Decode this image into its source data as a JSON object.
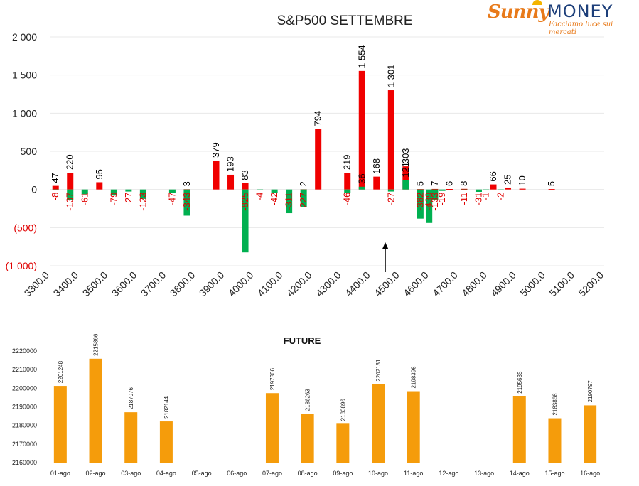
{
  "logo": {
    "word1": "Sunny",
    "word2": "MONEY",
    "tagline": "Facciamo luce sui mercati"
  },
  "chart_data": [
    {
      "type": "bar",
      "title": "S&P500 SETTEMBRE",
      "x_ticks": [
        "3300.0",
        "3400.0",
        "3500.0",
        "3600.0",
        "3700.0",
        "3800.0",
        "3900.0",
        "4000.0",
        "4100.0",
        "4200.0",
        "4300.0",
        "4400.0",
        "4500.0",
        "4600.0",
        "4700.0",
        "4800.0",
        "4900.0",
        "5000.0",
        "5100.0",
        "5200.0"
      ],
      "y_ticks": [
        "2 000",
        "1 500",
        "1 000",
        "500",
        "0",
        "(500)",
        "(1 000)"
      ],
      "ylim": [
        -1000,
        2000
      ],
      "xlim": [
        3300,
        5200
      ],
      "grid": true,
      "current_price_marker": 4450,
      "colors": {
        "calls": "#f00000",
        "puts": "#00b050",
        "negative_label": "#e00000",
        "positive_label": "#000000",
        "marker": "#000000"
      },
      "series": [
        {
          "points": [
            [
              3320,
              47
            ],
            [
              3370,
              220
            ],
            [
              3470,
              95
            ],
            [
              3770,
              3
            ],
            [
              3870,
              379
            ],
            [
              3920,
              193
            ],
            [
              3970,
              83
            ],
            [
              4170,
              2
            ],
            [
              4220,
              794
            ],
            [
              4320,
              219
            ],
            [
              4370,
              1554
            ],
            [
              4420,
              168
            ],
            [
              4470,
              1301
            ],
            [
              4520,
              303
            ],
            [
              4570,
              5
            ],
            [
              4620,
              7
            ],
            [
              4670,
              6
            ],
            [
              4720,
              8
            ],
            [
              4820,
              66
            ],
            [
              4870,
              25
            ],
            [
              4920,
              10
            ],
            [
              5020,
              5
            ]
          ]
        },
        {
          "points": [
            [
              3320,
              -8
            ],
            [
              3370,
              -137
            ],
            [
              3420,
              -61
            ],
            [
              3520,
              -79
            ],
            [
              3570,
              -27
            ],
            [
              3620,
              -123
            ],
            [
              3720,
              -47
            ],
            [
              3770,
              -343
            ],
            [
              3970,
              -825
            ],
            [
              4020,
              -4
            ],
            [
              4070,
              -42
            ],
            [
              4120,
              -311
            ],
            [
              4170,
              -227
            ],
            [
              4320,
              -46
            ],
            [
              4370,
              36
            ],
            [
              4470,
              -27
            ],
            [
              4520,
              121
            ],
            [
              4570,
              -382
            ],
            [
              4600,
              -439
            ],
            [
              4620,
              -133
            ],
            [
              4645,
              -19
            ],
            [
              4720,
              -11
            ],
            [
              4770,
              -31
            ],
            [
              4795,
              -1
            ],
            [
              4845,
              -2
            ]
          ]
        }
      ]
    },
    {
      "type": "bar",
      "title": "FUTURE",
      "categories": [
        "01-ago",
        "02-ago",
        "03-ago",
        "04-ago",
        "05-ago",
        "06-ago",
        "07-ago",
        "08-ago",
        "09-ago",
        "10-ago",
        "11-ago",
        "12-ago",
        "13-ago",
        "14-ago",
        "15-ago",
        "16-ago"
      ],
      "values": [
        2201248,
        2215866,
        2187076,
        2182144,
        null,
        null,
        2197366,
        2186263,
        2180896,
        2202131,
        2198398,
        null,
        null,
        2195635,
        2183868,
        2190797
      ],
      "y_ticks": [
        "2220000",
        "2210000",
        "2200000",
        "2190000",
        "2180000",
        "2170000",
        "2160000"
      ],
      "ylim": [
        2160000,
        2220000
      ],
      "color": "#f59c0b"
    }
  ]
}
